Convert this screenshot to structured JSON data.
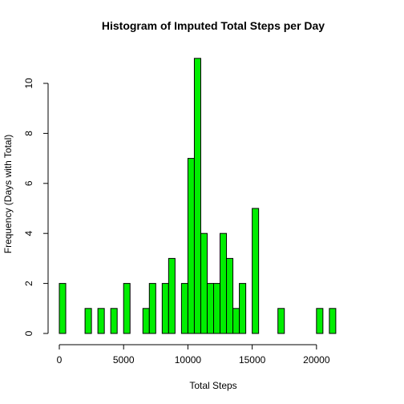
{
  "chart_data": {
    "type": "bar",
    "title": "Histogram of Imputed Total Steps per Day",
    "xlabel": "Total Steps",
    "ylabel": "Frequency (Days with Total)",
    "bin_width": 500,
    "bin_start": 0,
    "bins": [
      {
        "from": 0,
        "to": 500,
        "count": 2
      },
      {
        "from": 500,
        "to": 1000,
        "count": 0
      },
      {
        "from": 1000,
        "to": 1500,
        "count": 0
      },
      {
        "from": 1500,
        "to": 2000,
        "count": 0
      },
      {
        "from": 2000,
        "to": 2500,
        "count": 1
      },
      {
        "from": 2500,
        "to": 3000,
        "count": 0
      },
      {
        "from": 3000,
        "to": 3500,
        "count": 1
      },
      {
        "from": 3500,
        "to": 4000,
        "count": 0
      },
      {
        "from": 4000,
        "to": 4500,
        "count": 1
      },
      {
        "from": 4500,
        "to": 5000,
        "count": 0
      },
      {
        "from": 5000,
        "to": 5500,
        "count": 2
      },
      {
        "from": 5500,
        "to": 6000,
        "count": 0
      },
      {
        "from": 6000,
        "to": 6500,
        "count": 0
      },
      {
        "from": 6500,
        "to": 7000,
        "count": 1
      },
      {
        "from": 7000,
        "to": 7500,
        "count": 2
      },
      {
        "from": 7500,
        "to": 8000,
        "count": 0
      },
      {
        "from": 8000,
        "to": 8500,
        "count": 2
      },
      {
        "from": 8500,
        "to": 9000,
        "count": 3
      },
      {
        "from": 9000,
        "to": 9500,
        "count": 0
      },
      {
        "from": 9500,
        "to": 10000,
        "count": 2
      },
      {
        "from": 10000,
        "to": 10500,
        "count": 7
      },
      {
        "from": 10500,
        "to": 11000,
        "count": 11
      },
      {
        "from": 11000,
        "to": 11500,
        "count": 4
      },
      {
        "from": 11500,
        "to": 12000,
        "count": 2
      },
      {
        "from": 12000,
        "to": 12500,
        "count": 2
      },
      {
        "from": 12500,
        "to": 13000,
        "count": 4
      },
      {
        "from": 13000,
        "to": 13500,
        "count": 3
      },
      {
        "from": 13500,
        "to": 14000,
        "count": 1
      },
      {
        "from": 14000,
        "to": 14500,
        "count": 2
      },
      {
        "from": 14500,
        "to": 15000,
        "count": 0
      },
      {
        "from": 15000,
        "to": 15500,
        "count": 5
      },
      {
        "from": 15500,
        "to": 16000,
        "count": 0
      },
      {
        "from": 16000,
        "to": 16500,
        "count": 0
      },
      {
        "from": 16500,
        "to": 17000,
        "count": 0
      },
      {
        "from": 17000,
        "to": 17500,
        "count": 1
      },
      {
        "from": 17500,
        "to": 18000,
        "count": 0
      },
      {
        "from": 18000,
        "to": 18500,
        "count": 0
      },
      {
        "from": 18500,
        "to": 19000,
        "count": 0
      },
      {
        "from": 19000,
        "to": 19500,
        "count": 0
      },
      {
        "from": 19500,
        "to": 20000,
        "count": 0
      },
      {
        "from": 20000,
        "to": 20500,
        "count": 1
      },
      {
        "from": 20500,
        "to": 21000,
        "count": 0
      },
      {
        "from": 21000,
        "to": 21500,
        "count": 1
      }
    ],
    "xlim": [
      0,
      24000
    ],
    "ylim": [
      0,
      11
    ],
    "x_ticks": [
      0,
      5000,
      10000,
      15000,
      20000
    ],
    "x_tick_labels": [
      "0",
      "5000",
      "10000",
      "15000",
      "20000"
    ],
    "y_ticks": [
      0,
      2,
      4,
      6,
      8,
      10
    ],
    "y_tick_labels": [
      "0",
      "2",
      "4",
      "6",
      "8",
      "10"
    ],
    "bar_color": "#00ee00",
    "bar_border_color": "#000000",
    "grid": false,
    "legend": "none"
  }
}
